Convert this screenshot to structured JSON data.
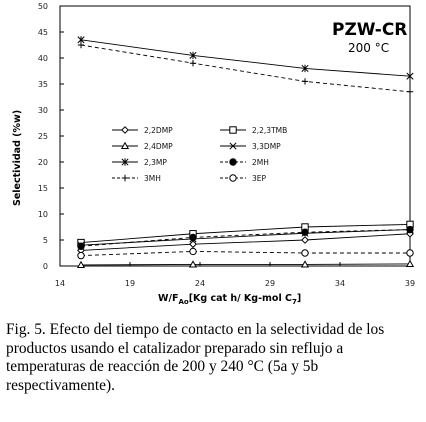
{
  "chart_data": {
    "type": "line",
    "panel_title": "PZW-CR",
    "panel_subtitle": "200 °C",
    "xlabel_main": "W/F",
    "xlabel_sub": "Ao",
    "xlabel_rest": "[Kg cat h/ Kg-mol C",
    "xlabel_sub2": "7",
    "xlabel_end": "]",
    "ylabel": "Selectividad (%w)",
    "xlim": [
      14,
      39
    ],
    "ylim": [
      0,
      50
    ],
    "xticks": [
      "14",
      "19",
      "24",
      "29",
      "34",
      "39"
    ],
    "yticks": [
      "0",
      "5",
      "10",
      "15",
      "20",
      "25",
      "30",
      "35",
      "40",
      "45",
      "50"
    ],
    "grid": false,
    "legend_position": "middle-left",
    "x": [
      15.5,
      23.5,
      31.5,
      39
    ],
    "series": [
      {
        "name": "2,2DMP",
        "marker": "diamond",
        "dash": "solid",
        "values": [
          3.0,
          4.2,
          5.0,
          6.2
        ]
      },
      {
        "name": "2,2,3TMB",
        "marker": "square",
        "dash": "solid",
        "values": [
          4.5,
          6.2,
          7.5,
          8.0
        ]
      },
      {
        "name": "2,4DMP",
        "marker": "triangle",
        "dash": "solid",
        "values": [
          0.2,
          0.3,
          0.3,
          0.4
        ]
      },
      {
        "name": "3,3DMP",
        "marker": "x",
        "dash": "solid",
        "values": [
          4.0,
          5.2,
          6.3,
          7.0
        ]
      },
      {
        "name": "2,3MP",
        "marker": "star",
        "dash": "solid",
        "values": [
          43.5,
          40.5,
          38.0,
          36.5
        ]
      },
      {
        "name": "2MH",
        "marker": "circle-filled",
        "dash": "dashed",
        "values": [
          3.8,
          5.5,
          6.5,
          7.0
        ]
      },
      {
        "name": "3MH",
        "marker": "plus",
        "dash": "dashed",
        "values": [
          42.5,
          39.0,
          35.5,
          33.5
        ]
      },
      {
        "name": "3EP",
        "marker": "circle-open",
        "dash": "dashed",
        "values": [
          2.0,
          2.8,
          2.5,
          2.5
        ]
      }
    ]
  },
  "caption": "Fig. 5. Efecto del tiempo de contacto en la selectividad de los productos usando el catalizador preparado sin reflujo a temperaturas de reacción de 200 y 240 °C (5a y 5b respectivamente)."
}
